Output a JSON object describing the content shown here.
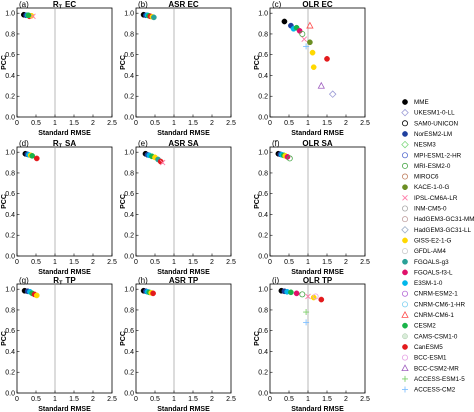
{
  "labels": {
    "xlabel": "Standard RMSE",
    "ylabel": "PCC",
    "xticks": [
      "0",
      "0.5",
      "1",
      "1.5",
      "2",
      "2.5"
    ],
    "yticks": [
      "0.0",
      "0.2",
      "0.4",
      "0.6",
      "0.8",
      "1.0"
    ]
  },
  "legend": [
    {
      "name": "MME",
      "color": "#000000",
      "marker": "circle-filled"
    },
    {
      "name": "UKESM1-0-LL",
      "color": "#9b9bd6",
      "marker": "diamond-open"
    },
    {
      "name": "SAM0-UNICON",
      "color": "#000000",
      "marker": "circle-open"
    },
    {
      "name": "NorESM2-LM",
      "color": "#1f3f9e",
      "marker": "circle-filled"
    },
    {
      "name": "NESM3",
      "color": "#7fd97f",
      "marker": "diamond-open"
    },
    {
      "name": "MPI-ESM1-2-HR",
      "color": "#5a6fd0",
      "marker": "circle-open"
    },
    {
      "name": "MRI-ESM2-0",
      "color": "#4aa84a",
      "marker": "circle-open"
    },
    {
      "name": "MIROC6",
      "color": "#c08060",
      "marker": "circle-open"
    },
    {
      "name": "KACE-1-0-G",
      "color": "#6b8e23",
      "marker": "circle-filled"
    },
    {
      "name": "IPSL-CM6A-LR",
      "color": "#ff7aa8",
      "marker": "x"
    },
    {
      "name": "INM-CM5-0",
      "color": "#aaaaaa",
      "marker": "circle-open"
    },
    {
      "name": "HadGEM3-GC31-MM",
      "color": "#c0a0a0",
      "marker": "circle-open"
    },
    {
      "name": "HadGEM3-GC31-LL",
      "color": "#9fb0c8",
      "marker": "diamond-open"
    },
    {
      "name": "GISS-E2-1-G",
      "color": "#ffd800",
      "marker": "circle-filled"
    },
    {
      "name": "GFDL-AM4",
      "color": "#cccccc",
      "marker": "circle-open"
    },
    {
      "name": "FGOALS-g3",
      "color": "#2aa198",
      "marker": "circle-filled"
    },
    {
      "name": "FGOALS-f3-L",
      "color": "#e0106a",
      "marker": "circle-filled"
    },
    {
      "name": "E3SM-1-0",
      "color": "#00b7eb",
      "marker": "circle-filled"
    },
    {
      "name": "CNRM-ESM2-1",
      "color": "#b56ad6",
      "marker": "circle-open"
    },
    {
      "name": "CNRM-CM6-1-HR",
      "color": "#80d0f0",
      "marker": "circle-open"
    },
    {
      "name": "CNRM-CM6-1",
      "color": "#ff4d4d",
      "marker": "triangle-open"
    },
    {
      "name": "CESM2",
      "color": "#19b449",
      "marker": "circle-filled"
    },
    {
      "name": "CAMS-CSM1-0",
      "color": "#d9ecd9",
      "marker": "circle-filled"
    },
    {
      "name": "CanESM5",
      "color": "#e31a1c",
      "marker": "circle-filled"
    },
    {
      "name": "BCC-ESM1",
      "color": "#e5a0e5",
      "marker": "circle-open"
    },
    {
      "name": "BCC-CSM2-MR",
      "color": "#a060c0",
      "marker": "triangle-open"
    },
    {
      "name": "ACCESS-ESM1-5",
      "color": "#7dcf6a",
      "marker": "plus"
    },
    {
      "name": "ACCESS-CM2",
      "color": "#80c0ff",
      "marker": "plus"
    }
  ],
  "chart_data": [
    {
      "type": "scatter",
      "panel_label": "(a)",
      "title": "R_T EC",
      "title_main": "R",
      "title_sub": "T",
      "title_rest": "EC",
      "xlim": [
        0,
        2.5
      ],
      "ylim": [
        0,
        1.05
      ],
      "reference_x": 1,
      "points": [
        {
          "model": "MME",
          "x": 0.18,
          "y": 0.985
        },
        {
          "model": "NorESM2-LM",
          "x": 0.24,
          "y": 0.98
        },
        {
          "model": "E3SM-1-0",
          "x": 0.28,
          "y": 0.98
        },
        {
          "model": "CanESM5",
          "x": 0.33,
          "y": 0.97
        },
        {
          "model": "GISS-E2-1-G",
          "x": 0.38,
          "y": 0.975
        },
        {
          "model": "IPSL-CM6A-LR",
          "x": 0.42,
          "y": 0.97
        },
        {
          "model": "CESM2",
          "x": 0.3,
          "y": 0.98
        }
      ]
    },
    {
      "type": "scatter",
      "panel_label": "(b)",
      "title": "ASR EC",
      "xlim": [
        0,
        2.5
      ],
      "ylim": [
        0,
        1.05
      ],
      "reference_x": 1,
      "points": [
        {
          "model": "MME",
          "x": 0.2,
          "y": 0.985
        },
        {
          "model": "NorESM2-LM",
          "x": 0.26,
          "y": 0.98
        },
        {
          "model": "E3SM-1-0",
          "x": 0.3,
          "y": 0.98
        },
        {
          "model": "CESM2",
          "x": 0.34,
          "y": 0.975
        },
        {
          "model": "CanESM5",
          "x": 0.38,
          "y": 0.97
        },
        {
          "model": "GISS-E2-1-G",
          "x": 0.43,
          "y": 0.965
        },
        {
          "model": "FGOALS-g3",
          "x": 0.47,
          "y": 0.96
        }
      ]
    },
    {
      "type": "scatter",
      "panel_label": "(c)",
      "title": "OLR EC",
      "xlim": [
        0,
        2.5
      ],
      "ylim": [
        0,
        1.05
      ],
      "reference_x": 1,
      "points": [
        {
          "model": "MME",
          "x": 0.38,
          "y": 0.92
        },
        {
          "model": "NorESM2-LM",
          "x": 0.55,
          "y": 0.88
        },
        {
          "model": "E3SM-1-0",
          "x": 0.62,
          "y": 0.85
        },
        {
          "model": "CESM2",
          "x": 0.7,
          "y": 0.86
        },
        {
          "model": "FGOALS-f3-L",
          "x": 0.78,
          "y": 0.83
        },
        {
          "model": "MRI-ESM2-0",
          "x": 0.85,
          "y": 0.8
        },
        {
          "model": "IPSL-CM6A-LR",
          "x": 0.9,
          "y": 0.75
        },
        {
          "model": "KACE-1-0-G",
          "x": 1.05,
          "y": 0.72
        },
        {
          "model": "GISS-E2-1-G",
          "x": 1.12,
          "y": 0.62
        },
        {
          "model": "GISS-E2-1-G",
          "x": 1.15,
          "y": 0.48
        },
        {
          "model": "CanESM5",
          "x": 1.5,
          "y": 0.56
        },
        {
          "model": "UKESM1-0-LL",
          "x": 1.65,
          "y": 0.22
        },
        {
          "model": "BCC-CSM2-MR",
          "x": 1.35,
          "y": 0.3
        },
        {
          "model": "ACCESS-CM2",
          "x": 0.95,
          "y": 0.68
        },
        {
          "model": "CNRM-CM6-1",
          "x": 1.05,
          "y": 0.88
        }
      ]
    },
    {
      "type": "scatter",
      "panel_label": "(d)",
      "title": "R_T SA",
      "title_main": "R",
      "title_sub": "T",
      "title_rest": "SA",
      "xlim": [
        0,
        2.5
      ],
      "ylim": [
        0,
        1.05
      ],
      "reference_x": 1,
      "points": [
        {
          "model": "MME",
          "x": 0.22,
          "y": 0.985
        },
        {
          "model": "NorESM2-LM",
          "x": 0.27,
          "y": 0.98
        },
        {
          "model": "E3SM-1-0",
          "x": 0.31,
          "y": 0.975
        },
        {
          "model": "GISS-E2-1-G",
          "x": 0.36,
          "y": 0.97
        },
        {
          "model": "CESM2",
          "x": 0.4,
          "y": 0.965
        },
        {
          "model": "CanESM5",
          "x": 0.52,
          "y": 0.94
        }
      ]
    },
    {
      "type": "scatter",
      "panel_label": "(e)",
      "title": "ASR SA",
      "xlim": [
        0,
        2.5
      ],
      "ylim": [
        0,
        1.05
      ],
      "reference_x": 1,
      "points": [
        {
          "model": "MME",
          "x": 0.25,
          "y": 0.985
        },
        {
          "model": "NorESM2-LM",
          "x": 0.3,
          "y": 0.975
        },
        {
          "model": "E3SM-1-0",
          "x": 0.35,
          "y": 0.97
        },
        {
          "model": "CESM2",
          "x": 0.42,
          "y": 0.96
        },
        {
          "model": "GISS-E2-1-G",
          "x": 0.5,
          "y": 0.95
        },
        {
          "model": "FGOALS-g3",
          "x": 0.58,
          "y": 0.93
        },
        {
          "model": "CanESM5",
          "x": 0.65,
          "y": 0.91
        },
        {
          "model": "IPSL-CM6A-LR",
          "x": 0.7,
          "y": 0.9
        }
      ]
    },
    {
      "type": "scatter",
      "panel_label": "(f)",
      "title": "OLR SA",
      "xlim": [
        0,
        2.5
      ],
      "ylim": [
        0,
        1.05
      ],
      "reference_x": 1,
      "points": [
        {
          "model": "MME",
          "x": 0.22,
          "y": 0.985
        },
        {
          "model": "NorESM2-LM",
          "x": 0.27,
          "y": 0.98
        },
        {
          "model": "E3SM-1-0",
          "x": 0.31,
          "y": 0.975
        },
        {
          "model": "CESM2",
          "x": 0.36,
          "y": 0.97
        },
        {
          "model": "GISS-E2-1-G",
          "x": 0.4,
          "y": 0.965
        },
        {
          "model": "FGOALS-f3-L",
          "x": 0.46,
          "y": 0.955
        },
        {
          "model": "MRI-ESM2-0",
          "x": 0.52,
          "y": 0.94
        }
      ]
    },
    {
      "type": "scatter",
      "panel_label": "(g)",
      "title": "R_T TP",
      "title_main": "R",
      "title_sub": "T",
      "title_rest": "TP",
      "xlim": [
        0,
        2.5
      ],
      "ylim": [
        0,
        1.05
      ],
      "reference_x": 1,
      "points": [
        {
          "model": "MME",
          "x": 0.2,
          "y": 0.985
        },
        {
          "model": "NorESM2-LM",
          "x": 0.28,
          "y": 0.98
        },
        {
          "model": "E3SM-1-0",
          "x": 0.34,
          "y": 0.975
        },
        {
          "model": "CESM2",
          "x": 0.4,
          "y": 0.96
        },
        {
          "model": "CanESM5",
          "x": 0.46,
          "y": 0.95
        },
        {
          "model": "GISS-E2-1-G",
          "x": 0.52,
          "y": 0.94
        }
      ]
    },
    {
      "type": "scatter",
      "panel_label": "(h)",
      "title": "ASR TP",
      "xlim": [
        0,
        2.5
      ],
      "ylim": [
        0,
        1.05
      ],
      "reference_x": 1,
      "points": [
        {
          "model": "MME",
          "x": 0.2,
          "y": 0.985
        },
        {
          "model": "NorESM2-LM",
          "x": 0.26,
          "y": 0.98
        },
        {
          "model": "E3SM-1-0",
          "x": 0.3,
          "y": 0.975
        },
        {
          "model": "CESM2",
          "x": 0.35,
          "y": 0.97
        },
        {
          "model": "GISS-E2-1-G",
          "x": 0.4,
          "y": 0.965
        },
        {
          "model": "CanESM5",
          "x": 0.45,
          "y": 0.96
        }
      ]
    },
    {
      "type": "scatter",
      "panel_label": "(i)",
      "title": "OLR TP",
      "xlim": [
        0,
        2.5
      ],
      "ylim": [
        0,
        1.05
      ],
      "reference_x": 1,
      "points": [
        {
          "model": "MME",
          "x": 0.3,
          "y": 0.985
        },
        {
          "model": "NorESM2-LM",
          "x": 0.38,
          "y": 0.98
        },
        {
          "model": "E3SM-1-0",
          "x": 0.45,
          "y": 0.975
        },
        {
          "model": "CESM2",
          "x": 0.55,
          "y": 0.97
        },
        {
          "model": "FGOALS-f3-L",
          "x": 0.7,
          "y": 0.96
        },
        {
          "model": "MRI-ESM2-0",
          "x": 0.85,
          "y": 0.95
        },
        {
          "model": "IPSL-CM6A-LR",
          "x": 1.0,
          "y": 0.93
        },
        {
          "model": "GISS-E2-1-G",
          "x": 1.15,
          "y": 0.92
        },
        {
          "model": "CanESM5",
          "x": 1.35,
          "y": 0.9
        },
        {
          "model": "ACCESS-ESM1-5",
          "x": 0.95,
          "y": 0.78
        },
        {
          "model": "BCC-ESM1",
          "x": 1.2,
          "y": 0.93
        },
        {
          "model": "ACCESS-CM2",
          "x": 0.95,
          "y": 0.68
        }
      ]
    }
  ]
}
